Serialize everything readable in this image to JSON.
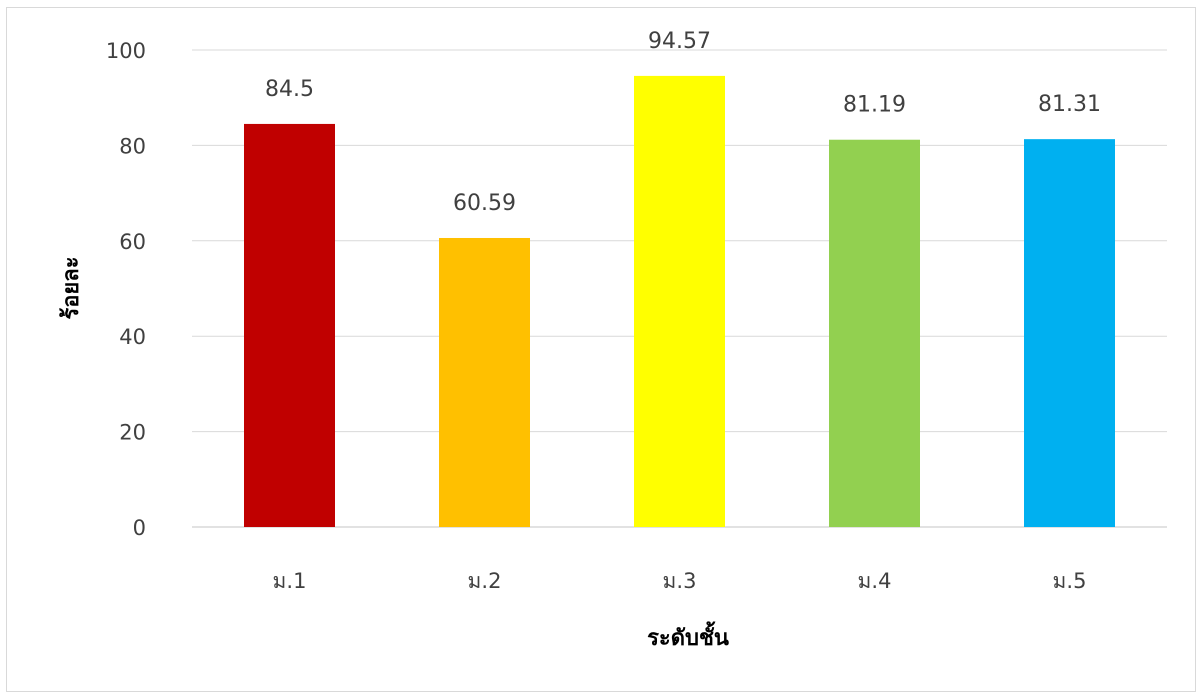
{
  "chart_data": {
    "type": "bar",
    "title": "",
    "xlabel": "ระดับชั้น",
    "ylabel": "ร้อยละ",
    "categories": [
      "ม.1",
      "ม.2",
      "ม.3",
      "ม.4",
      "ม.5"
    ],
    "values": [
      84.5,
      60.59,
      94.57,
      81.19,
      81.31
    ],
    "value_labels": [
      "84.5",
      "60.59",
      "94.57",
      "81.19",
      "81.31"
    ],
    "bar_colors": [
      "#c00000",
      "#ffc000",
      "#ffff00",
      "#92d050",
      "#00b0f0"
    ],
    "ylim": [
      0,
      100
    ],
    "yticks": [
      0,
      20,
      40,
      60,
      80,
      100
    ],
    "ytick_labels": [
      "0",
      "20",
      "40",
      "60",
      "80",
      "100"
    ],
    "grid": true,
    "legend": "none"
  }
}
